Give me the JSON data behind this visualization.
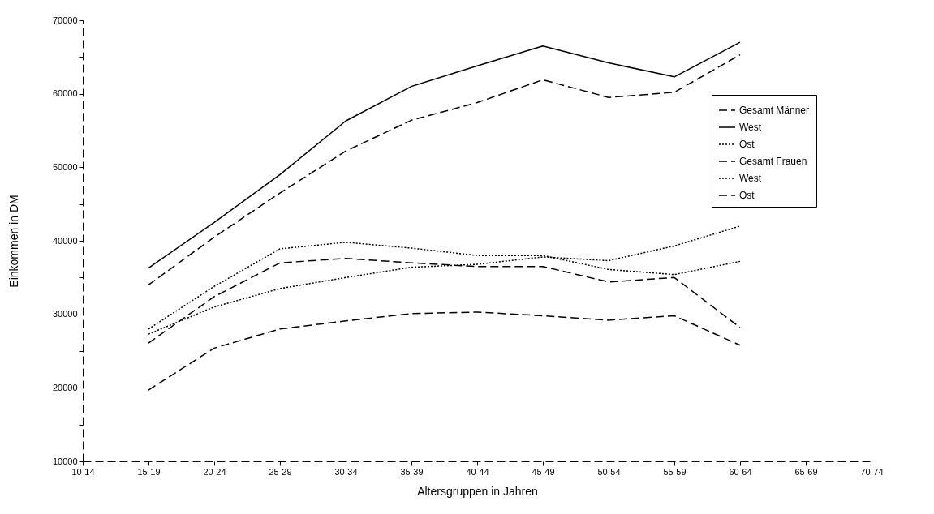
{
  "chart_data": {
    "type": "line",
    "xlabel": "Altersgruppen in Jahren",
    "ylabel": "Einkommen  in DM",
    "categories": [
      "10-14",
      "15-19",
      "20-24",
      "25-29",
      "30-34",
      "35-39",
      "40-44",
      "45-49",
      "50-54",
      "55-59",
      "60-64",
      "65-69",
      "70-74"
    ],
    "ylim": [
      10000,
      70000
    ],
    "yticks": [
      10000,
      {
        "value": 15000,
        "label": null
      },
      20000,
      {
        "value": 25000,
        "label": null
      },
      30000,
      {
        "value": 35000,
        "label": null
      },
      40000,
      {
        "value": 45000,
        "label": null
      },
      50000,
      {
        "value": 55000,
        "label": null
      },
      60000,
      {
        "value": 65000,
        "label": null
      },
      70000
    ],
    "grid": false,
    "legend": "top right",
    "series": [
      {
        "name": "Gesamt Männer",
        "color": "#000000",
        "line_style": "dashed",
        "values": [
          null,
          34000,
          40500,
          46500,
          52200,
          56400,
          58800,
          61900,
          59500,
          60200,
          65300,
          null,
          null
        ]
      },
      {
        "name": "West",
        "color": "#000000",
        "line_style": "solid",
        "values": [
          null,
          36300,
          42500,
          49000,
          56300,
          61000,
          63800,
          66500,
          64200,
          62300,
          67000,
          null,
          null
        ]
      },
      {
        "name": "Ost",
        "color": "#000000",
        "line_style": "dotted",
        "values": [
          null,
          28000,
          33800,
          38900,
          39800,
          39000,
          38000,
          38000,
          36100,
          35400,
          37200,
          null,
          null
        ]
      },
      {
        "name": "Gesamt Frauen",
        "color": "#000000",
        "line_style": "dashed",
        "values": [
          null,
          26100,
          32400,
          37000,
          37600,
          37000,
          36500,
          36500,
          34400,
          35000,
          28200,
          null,
          null
        ]
      },
      {
        "name": "West",
        "color": "#000000",
        "line_style": "dotted",
        "values": [
          null,
          27300,
          31000,
          33500,
          35000,
          36400,
          36800,
          37800,
          37300,
          39300,
          42000,
          null,
          null
        ]
      },
      {
        "name": "Ost",
        "color": "#000000",
        "line_style": "dashed",
        "values": [
          null,
          19700,
          25400,
          28000,
          29100,
          30100,
          30300,
          29800,
          29200,
          29800,
          25800,
          null,
          null
        ]
      }
    ]
  }
}
